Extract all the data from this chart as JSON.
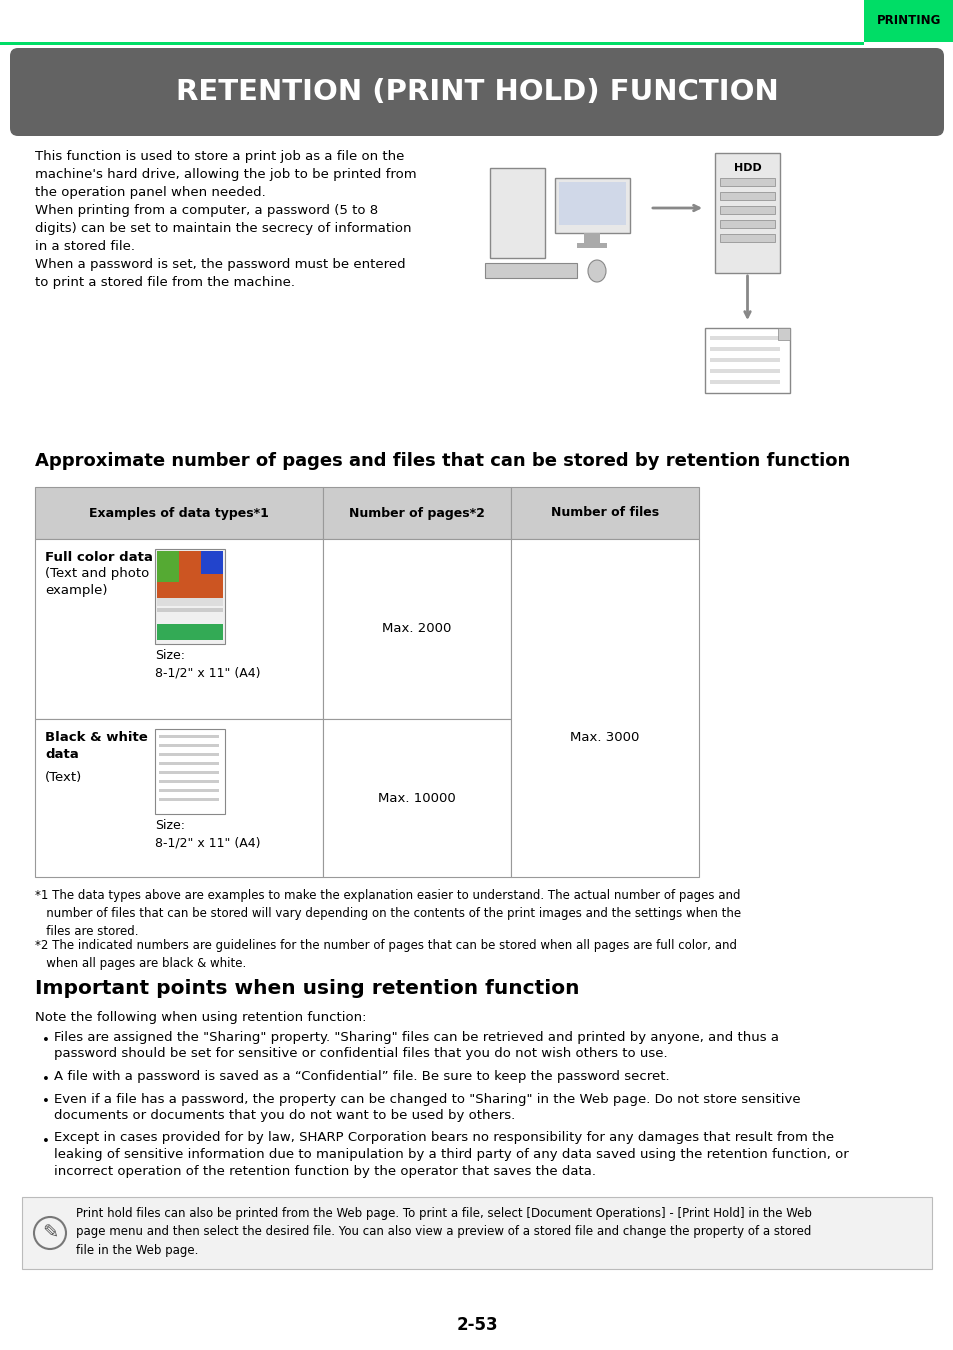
{
  "page_bg": "#ffffff",
  "header_tab_color": "#00dd66",
  "header_tab_text": "PRINTING",
  "green_line_color": "#00dd66",
  "title_bg": "#636363",
  "title_text": "RETENTION (PRINT HOLD) FUNCTION",
  "title_text_color": "#ffffff",
  "intro_text_lines": [
    "This function is used to store a print job as a file on the",
    "machine's hard drive, allowing the job to be printed from",
    "the operation panel when needed.",
    "When printing from a computer, a password (5 to 8",
    "digits) can be set to maintain the secrecy of information",
    "in a stored file.",
    "When a password is set, the password must be entered",
    "to print a stored file from the machine."
  ],
  "table_heading": "Approximate number of pages and files that can be stored by retention function",
  "table_col_headers": [
    "Examples of data types*1",
    "Number of pages*2",
    "Number of files"
  ],
  "table_col_header_bg": "#cccccc",
  "table_row1_col1_bold": "Full color data",
  "table_row1_col1_normal": "(Text and photo\nexample)",
  "table_row1_col1_size": "Size:\n8-1/2\" x 11\" (A4)",
  "table_row1_col2": "Max. 2000",
  "table_row2_col1_bold": "Black & white\ndata",
  "table_row2_col1_normal": "(Text)",
  "table_row2_col1_size": "Size:\n8-1/2\" x 11\" (A4)",
  "table_row2_col2": "Max. 10000",
  "table_col3_merged": "Max. 3000",
  "footnote1": "*1 The data types above are examples to make the explanation easier to understand. The actual number of pages and\n   number of files that can be stored will vary depending on the contents of the print images and the settings when the\n   files are stored.",
  "footnote2": "*2 The indicated numbers are guidelines for the number of pages that can be stored when all pages are full color, and\n   when all pages are black & white.",
  "section2_title": "Important points when using retention function",
  "section2_intro": "Note the following when using retention function:",
  "bullet_points": [
    "Files are assigned the \"Sharing\" property. \"Sharing\" files can be retrieved and printed by anyone, and thus a\n  password should be set for sensitive or confidential files that you do not wish others to use.",
    "A file with a password is saved as a “Confidential” file. Be sure to keep the password secret.",
    "Even if a file has a password, the property can be changed to \"Sharing\" in the Web page. Do not store sensitive\n  documents or documents that you do not want to be used by others.",
    "Except in cases provided for by law, SHARP Corporation bears no responsibility for any damages that result from the\n  leaking of sensitive information due to manipulation by a third party of any data saved using the retention function, or\n  incorrect operation of the retention function by the operator that saves the data."
  ],
  "note_bg": "#f2f2f2",
  "note_text": "Print hold files can also be printed from the Web page. To print a file, select [Document Operations] - [Print Hold] in the Web\npage menu and then select the desired file. You can also view a preview of a stored file and change the property of a stored\nfile in the Web page.",
  "page_number": "2-53"
}
